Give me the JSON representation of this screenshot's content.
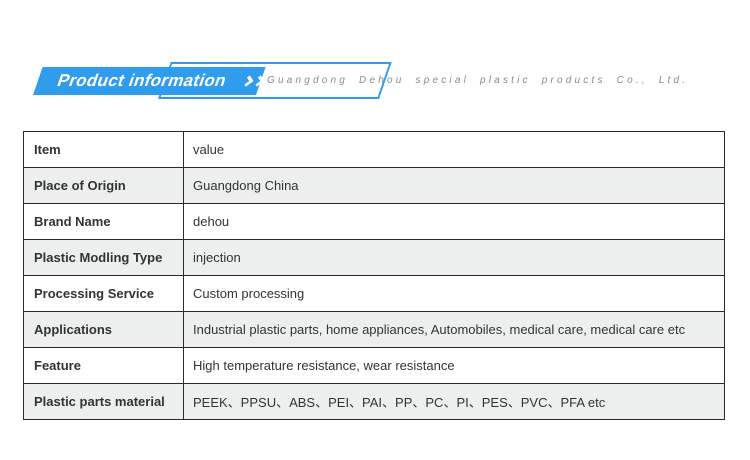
{
  "header": {
    "title": "Product information",
    "chevrons_icon": "triple-chevron-right-icon",
    "company": "Guangdong Dehou special plastic products Co., Ltd."
  },
  "table": {
    "rows": [
      {
        "label": "Item",
        "value": "value"
      },
      {
        "label": "Place of Origin",
        "value": "Guangdong China"
      },
      {
        "label": "Brand Name",
        "value": "dehou"
      },
      {
        "label": "Plastic Modling Type",
        "value": "injection"
      },
      {
        "label": "Processing Service",
        "value": "Custom processing"
      },
      {
        "label": "Applications",
        "value": "Industrial plastic parts, home appliances, Automobiles, medical care, medical care etc"
      },
      {
        "label": "Feature",
        "value": "High temperature resistance, wear resistance"
      },
      {
        "label": "Plastic parts material",
        "value": "PEEK、PPSU、ABS、PEI、PAI、PP、PC、PI、PES、PVC、PFA etc"
      }
    ]
  },
  "colors": {
    "accent_blue": "#2F9CEE",
    "row_alt_gray": "#ECEFEE",
    "table_border": "#2B2B2B",
    "text_dark": "#333333",
    "company_gray": "#8A8A8A"
  }
}
